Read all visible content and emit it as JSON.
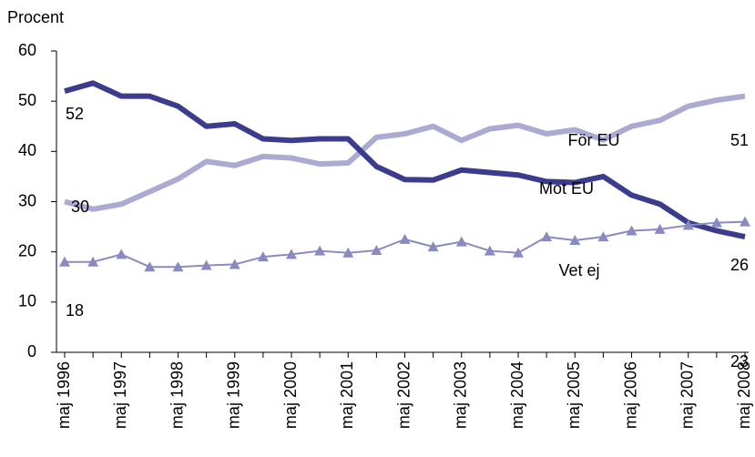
{
  "chart_data": {
    "type": "line",
    "y_label": "Procent",
    "categories": [
      "maj 1996",
      null,
      "maj 1997",
      null,
      "maj 1998",
      null,
      "maj 1999",
      null,
      "maj 2000",
      null,
      "maj 2001",
      null,
      "maj 2002",
      null,
      "maj 2003",
      null,
      "maj 2004",
      null,
      "maj 2005",
      null,
      "maj 2006",
      null,
      "maj 2007",
      null,
      "maj 2008"
    ],
    "series": [
      {
        "name": "För EU",
        "color": "#aaaad2",
        "values": [
          30,
          28.5,
          29.5,
          32,
          34.5,
          38,
          37.2,
          39,
          38.7,
          37.5,
          37.7,
          42.8,
          43.5,
          45,
          42.2,
          44.5,
          45.2,
          43.5,
          44.3,
          42.3,
          45,
          46.2,
          49,
          50.2,
          51
        ]
      },
      {
        "name": "Mot EU",
        "color": "#3c3c8e",
        "values": [
          52,
          53.6,
          51,
          51,
          49,
          45,
          45.5,
          42.5,
          42.2,
          42.5,
          42.5,
          37,
          34.4,
          34.3,
          36.3,
          35.8,
          35.3,
          34,
          33.8,
          35,
          31.3,
          29.5,
          25.8,
          24.2,
          23
        ]
      },
      {
        "name": "Vet ej",
        "color": "#8a8ac2",
        "marker": "triangle",
        "values": [
          18,
          18,
          19.5,
          17,
          17,
          17.3,
          17.5,
          19,
          19.5,
          20.2,
          19.8,
          20.3,
          22.5,
          21,
          22,
          20.2,
          19.8,
          23,
          22.3,
          23,
          24.2,
          24.5,
          25.3,
          25.8,
          26
        ]
      }
    ],
    "ylim": [
      0,
      60
    ],
    "yticks": [
      0,
      10,
      20,
      30,
      40,
      50,
      60
    ]
  }
}
